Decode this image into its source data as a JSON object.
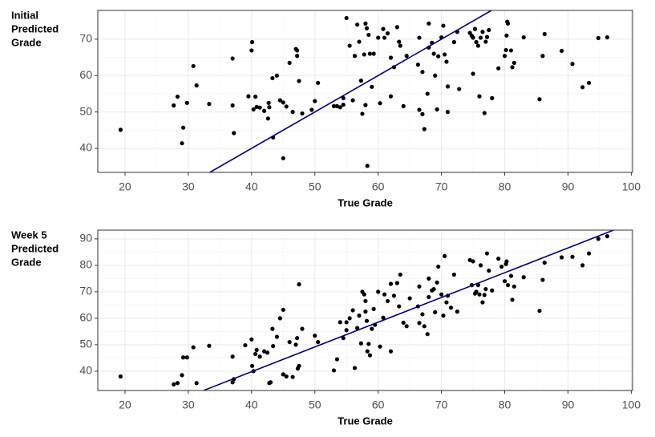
{
  "chart_data": [
    {
      "type": "scatter",
      "y_label": [
        "Initial",
        "Predicted",
        "Grade"
      ],
      "x_label": "True Grade",
      "color": "#000000",
      "line_color": "#000080",
      "grid": true,
      "xlim": [
        15.7,
        100.2
      ],
      "ylim": [
        33.4,
        77.9
      ],
      "xticks": [
        20,
        30,
        40,
        50,
        60,
        70,
        80,
        90,
        100
      ],
      "yticks": [
        40,
        50,
        60,
        70
      ],
      "reference_line": {
        "x": [
          33.4,
          77.9
        ],
        "y": [
          33.4,
          77.9
        ]
      },
      "x": [
        19.3,
        27.7,
        28.3,
        29.0,
        29.2,
        29.8,
        30.8,
        31.3,
        33.3,
        37.0,
        37.0,
        37.2,
        39.5,
        40.0,
        40.1,
        40.3,
        40.6,
        40.8,
        41.3,
        42.0,
        42.6,
        42.7,
        42.8,
        43.3,
        43.4,
        44.0,
        44.5,
        45.0,
        45.0,
        45.5,
        46.0,
        46.5,
        47.0,
        47.2,
        47.2,
        47.5,
        48.0,
        49.5,
        50.0,
        50.5,
        53.0,
        53.5,
        54.0,
        54.5,
        54.5,
        55.0,
        55.5,
        56.0,
        56.3,
        56.7,
        57.0,
        57.3,
        57.5,
        57.8,
        58.0,
        58.0,
        58.2,
        58.3,
        58.5,
        58.7,
        59.0,
        59.3,
        60.0,
        60.3,
        60.8,
        61.0,
        61.5,
        62.0,
        62.0,
        62.5,
        63.0,
        63.3,
        63.5,
        64.0,
        64.5,
        66.3,
        66.5,
        66.5,
        67.0,
        67.0,
        67.3,
        67.8,
        68.0,
        68.0,
        68.5,
        68.8,
        69.0,
        69.3,
        69.5,
        70.0,
        70.3,
        70.5,
        70.8,
        71.0,
        71.0,
        72.0,
        72.5,
        72.8,
        74.5,
        74.8,
        75.0,
        75.0,
        75.3,
        75.5,
        75.8,
        76.0,
        76.2,
        76.5,
        76.8,
        77.0,
        77.2,
        77.5,
        78.0,
        79.0,
        80.0,
        80.2,
        80.3,
        80.4,
        80.5,
        81.0,
        81.2,
        81.5,
        83.0,
        85.5,
        86.0,
        86.3,
        89.0,
        90.7,
        92.3,
        93.3,
        94.8,
        96.2
      ],
      "values": [
        45.1,
        51.8,
        54.2,
        41.4,
        45.7,
        52.5,
        62.6,
        57.3,
        52.2,
        64.7,
        51.8,
        44.2,
        54.3,
        66.9,
        69.2,
        50.7,
        54.2,
        51.4,
        51.2,
        50.3,
        48.2,
        52.5,
        51.3,
        59.3,
        43.0,
        60.0,
        53.2,
        52.6,
        37.3,
        51.5,
        63.5,
        50.0,
        67.3,
        66.9,
        65.4,
        58.5,
        49.6,
        50.6,
        53.0,
        58.0,
        51.6,
        51.6,
        51.3,
        53.8,
        52.0,
        75.8,
        68.2,
        53.2,
        65.4,
        74.0,
        69.3,
        58.6,
        49.5,
        65.8,
        51.9,
        74.3,
        73.0,
        35.2,
        71.2,
        66.0,
        56.9,
        66.0,
        70.4,
        52.4,
        72.8,
        70.4,
        71.6,
        54.3,
        64.9,
        62.3,
        73.3,
        69.3,
        68.2,
        51.6,
        65.4,
        63.0,
        70.4,
        50.6,
        61.0,
        49.4,
        45.3,
        55.0,
        74.3,
        67.7,
        69.0,
        66.0,
        60.0,
        50.7,
        65.3,
        70.5,
        73.7,
        65.8,
        63.8,
        57.0,
        50.0,
        69.2,
        72.0,
        56.3,
        71.7,
        70.9,
        60.5,
        70.4,
        72.8,
        69.2,
        68.2,
        54.3,
        70.4,
        72.0,
        49.7,
        69.3,
        70.6,
        72.5,
        53.8,
        62.0,
        65.4,
        67.0,
        71.0,
        74.8,
        74.3,
        66.9,
        62.3,
        63.5,
        70.5,
        53.5,
        65.4,
        71.4,
        66.8,
        63.2,
        56.8,
        58.0,
        70.3,
        70.5
      ]
    },
    {
      "type": "scatter",
      "y_label": [
        "Week 5",
        "Predicted",
        "Grade"
      ],
      "x_label": "True Grade",
      "color": "#000000",
      "line_color": "#000080",
      "grid": true,
      "xlim": [
        15.7,
        100.2
      ],
      "ylim": [
        32.7,
        93.3
      ],
      "xticks": [
        20,
        30,
        40,
        50,
        60,
        70,
        80,
        90,
        100
      ],
      "yticks": [
        40,
        50,
        60,
        70,
        80,
        90
      ],
      "reference_line": {
        "x": [
          32.4,
          97.2
        ],
        "y": [
          32.7,
          93.3
        ]
      },
      "x": [
        19.3,
        27.7,
        28.3,
        29.0,
        29.2,
        29.8,
        30.8,
        31.3,
        33.3,
        37.0,
        37.0,
        37.2,
        39.0,
        40.0,
        40.1,
        40.3,
        40.6,
        40.8,
        41.3,
        42.0,
        42.5,
        42.8,
        43.0,
        43.3,
        43.4,
        44.0,
        44.5,
        45.0,
        45.0,
        45.5,
        46.0,
        46.5,
        47.0,
        47.2,
        47.3,
        47.5,
        47.5,
        48.0,
        50.0,
        50.5,
        53.0,
        53.5,
        54.0,
        54.5,
        55.0,
        55.0,
        55.5,
        56.0,
        56.3,
        56.7,
        57.0,
        57.3,
        57.5,
        57.8,
        58.0,
        58.0,
        58.2,
        58.3,
        58.5,
        58.7,
        59.0,
        59.3,
        59.5,
        60.0,
        60.3,
        60.8,
        61.0,
        61.5,
        62.0,
        62.0,
        62.5,
        63.0,
        63.3,
        63.5,
        64.0,
        64.5,
        65.0,
        66.3,
        66.5,
        66.5,
        67.0,
        67.3,
        67.8,
        68.0,
        68.0,
        68.5,
        68.8,
        69.0,
        69.3,
        69.5,
        70.0,
        70.3,
        70.5,
        70.8,
        71.0,
        71.5,
        72.0,
        72.5,
        74.5,
        74.8,
        75.0,
        75.3,
        75.5,
        75.8,
        76.0,
        76.2,
        76.5,
        76.8,
        77.0,
        77.2,
        77.5,
        78.0,
        79.0,
        79.5,
        80.0,
        80.2,
        80.3,
        80.5,
        81.0,
        81.2,
        81.5,
        83.0,
        85.5,
        86.0,
        86.3,
        89.0,
        90.7,
        92.3,
        93.3,
        94.8,
        96.2
      ],
      "values": [
        38.0,
        35.0,
        35.5,
        38.5,
        45.2,
        45.2,
        49.0,
        35.5,
        49.6,
        35.8,
        45.5,
        37.0,
        49.8,
        52.0,
        42.0,
        40.0,
        46.5,
        48.0,
        45.5,
        47.5,
        47.0,
        35.5,
        35.8,
        56.0,
        49.5,
        53.0,
        60.0,
        38.8,
        63.2,
        38.0,
        51.0,
        37.8,
        50.0,
        52.5,
        41.0,
        72.8,
        42.0,
        56.0,
        53.4,
        51.0,
        40.3,
        44.5,
        58.5,
        52.5,
        58.5,
        55.5,
        60.0,
        63.0,
        41.2,
        56.3,
        61.0,
        50.5,
        70.0,
        69.0,
        66.5,
        62.5,
        59.0,
        47.5,
        50.3,
        46.0,
        56.0,
        63.5,
        57.5,
        70.0,
        49.3,
        60.2,
        69.0,
        66.5,
        47.5,
        73.0,
        68.5,
        73.3,
        64.5,
        76.5,
        58.3,
        57.0,
        67.5,
        64.5,
        58.2,
        72.0,
        61.5,
        57.0,
        54.0,
        75.0,
        68.0,
        70.5,
        71.0,
        62.3,
        73.5,
        79.5,
        69.0,
        61.0,
        83.5,
        66.0,
        68.5,
        64.0,
        76.5,
        62.5,
        82.0,
        72.5,
        81.5,
        69.3,
        70.0,
        72.5,
        69.0,
        80.0,
        66.0,
        68.8,
        71.0,
        84.5,
        78.0,
        70.5,
        82.5,
        79.5,
        74.0,
        80.5,
        81.5,
        72.5,
        76.0,
        67.0,
        72.0,
        75.5,
        62.8,
        74.5,
        81.0,
        83.0,
        83.2,
        80.0,
        84.5,
        90.0,
        91.0
      ]
    }
  ]
}
